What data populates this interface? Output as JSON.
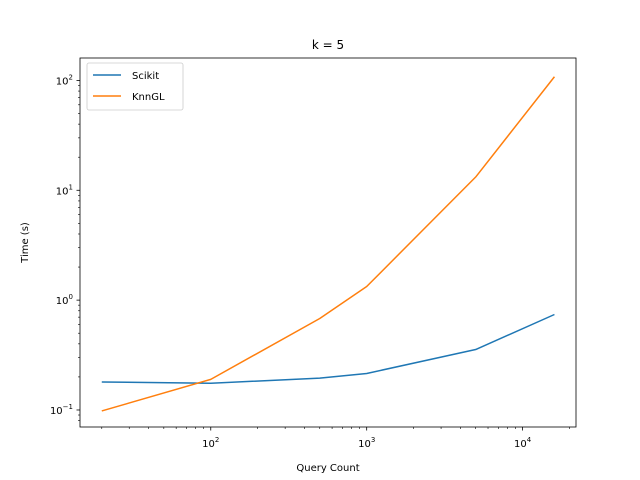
{
  "chart_data": {
    "type": "line",
    "title": "k = 5",
    "xlabel": "Query Count",
    "ylabel": "Time (s)",
    "xscale": "log",
    "yscale": "log",
    "xlim": [
      14.5,
      22000
    ],
    "ylim": [
      0.07,
      160
    ],
    "x_ticks": [
      {
        "value": 100,
        "base": "10",
        "exp": "2"
      },
      {
        "value": 1000,
        "base": "10",
        "exp": "3"
      },
      {
        "value": 10000,
        "base": "10",
        "exp": "4"
      }
    ],
    "y_ticks": [
      {
        "value": 0.1,
        "base": "10",
        "exp": "−1"
      },
      {
        "value": 1,
        "base": "10",
        "exp": "0"
      },
      {
        "value": 10,
        "base": "10",
        "exp": "1"
      },
      {
        "value": 100,
        "base": "10",
        "exp": "2"
      }
    ],
    "legend_position": "top-left",
    "series": [
      {
        "name": "Scikit",
        "color": "#1f77b4",
        "points": [
          [
            20,
            0.18
          ],
          [
            100,
            0.175
          ],
          [
            500,
            0.195
          ],
          [
            1000,
            0.215
          ],
          [
            5000,
            0.355
          ],
          [
            16000,
            0.74
          ]
        ]
      },
      {
        "name": "KnnGL",
        "color": "#ff7f0e",
        "points": [
          [
            20,
            0.098
          ],
          [
            100,
            0.19
          ],
          [
            500,
            0.68
          ],
          [
            1000,
            1.33
          ],
          [
            5000,
            13.2
          ],
          [
            16000,
            108
          ]
        ]
      }
    ]
  }
}
